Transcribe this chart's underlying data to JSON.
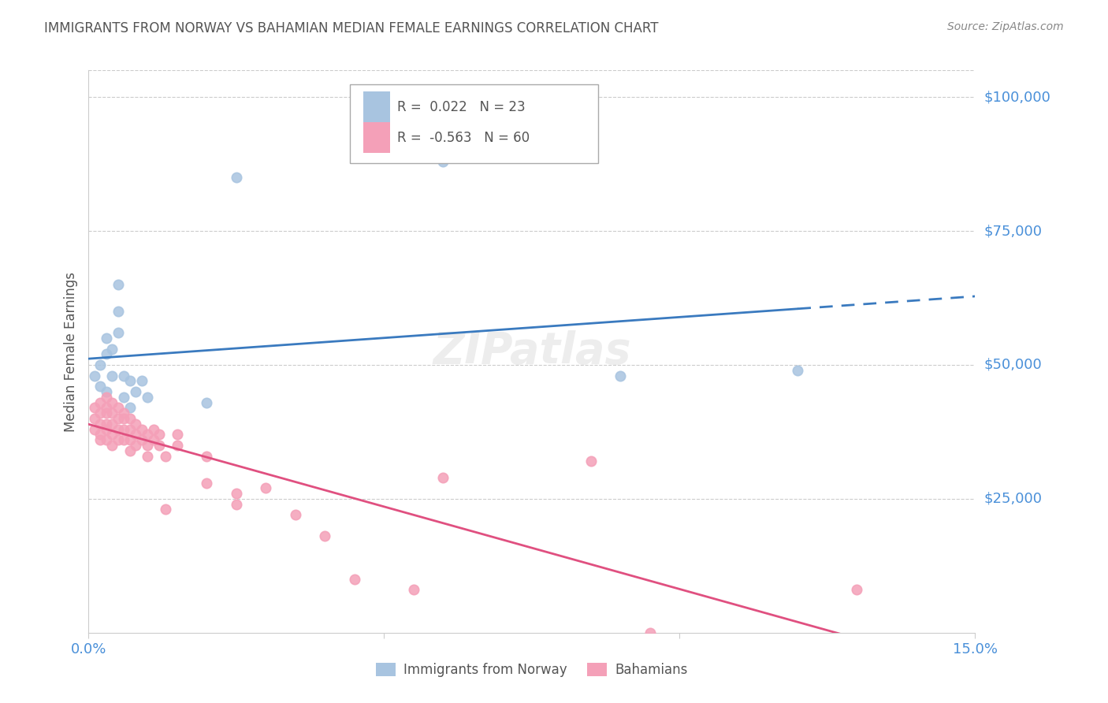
{
  "title": "IMMIGRANTS FROM NORWAY VS BAHAMIAN MEDIAN FEMALE EARNINGS CORRELATION CHART",
  "source": "Source: ZipAtlas.com",
  "ylabel": "Median Female Earnings",
  "ytick_labels": [
    "$25,000",
    "$50,000",
    "$75,000",
    "$100,000"
  ],
  "ytick_values": [
    25000,
    50000,
    75000,
    100000
  ],
  "ylim": [
    0,
    105000
  ],
  "xlim": [
    0.0,
    0.15
  ],
  "legend_entries": [
    {
      "label": "Immigrants from Norway",
      "R": "0.022",
      "N": "23",
      "color": "#a8c4e0"
    },
    {
      "label": "Bahamians",
      "R": "-0.563",
      "N": "60",
      "color": "#f4a0b8"
    }
  ],
  "norway_x": [
    0.001,
    0.002,
    0.002,
    0.003,
    0.003,
    0.003,
    0.004,
    0.004,
    0.005,
    0.005,
    0.005,
    0.006,
    0.006,
    0.007,
    0.007,
    0.008,
    0.009,
    0.01,
    0.02,
    0.025,
    0.06,
    0.09,
    0.12
  ],
  "norway_y": [
    48000,
    50000,
    46000,
    52000,
    55000,
    45000,
    53000,
    48000,
    65000,
    60000,
    56000,
    48000,
    44000,
    47000,
    42000,
    45000,
    47000,
    44000,
    43000,
    85000,
    88000,
    48000,
    49000
  ],
  "bahamas_x": [
    0.001,
    0.001,
    0.001,
    0.002,
    0.002,
    0.002,
    0.002,
    0.002,
    0.003,
    0.003,
    0.003,
    0.003,
    0.003,
    0.003,
    0.004,
    0.004,
    0.004,
    0.004,
    0.004,
    0.005,
    0.005,
    0.005,
    0.005,
    0.006,
    0.006,
    0.006,
    0.006,
    0.007,
    0.007,
    0.007,
    0.007,
    0.008,
    0.008,
    0.008,
    0.009,
    0.009,
    0.01,
    0.01,
    0.01,
    0.011,
    0.011,
    0.012,
    0.012,
    0.013,
    0.013,
    0.015,
    0.015,
    0.02,
    0.02,
    0.025,
    0.025,
    0.03,
    0.035,
    0.04,
    0.045,
    0.055,
    0.06,
    0.085,
    0.095,
    0.13
  ],
  "bahamas_y": [
    42000,
    40000,
    38000,
    43000,
    41000,
    39000,
    37000,
    36000,
    44000,
    42000,
    41000,
    39000,
    38000,
    36000,
    43000,
    41000,
    39000,
    37000,
    35000,
    42000,
    40000,
    38000,
    36000,
    41000,
    40000,
    38000,
    36000,
    40000,
    38000,
    36000,
    34000,
    39000,
    37000,
    35000,
    38000,
    36000,
    37000,
    35000,
    33000,
    38000,
    36000,
    37000,
    35000,
    33000,
    23000,
    37000,
    35000,
    33000,
    28000,
    26000,
    24000,
    27000,
    22000,
    18000,
    10000,
    8000,
    29000,
    32000,
    0,
    8000
  ],
  "norway_line_color": "#3a7abf",
  "bahamas_line_color": "#e05080",
  "scatter_dot_size": 80,
  "bg_color": "#ffffff",
  "grid_color": "#cccccc",
  "axis_color": "#cccccc",
  "title_color": "#555555",
  "ylabel_color": "#555555",
  "ytick_label_color": "#4a90d9",
  "xtick_label_color": "#4a90d9",
  "source_color": "#888888"
}
